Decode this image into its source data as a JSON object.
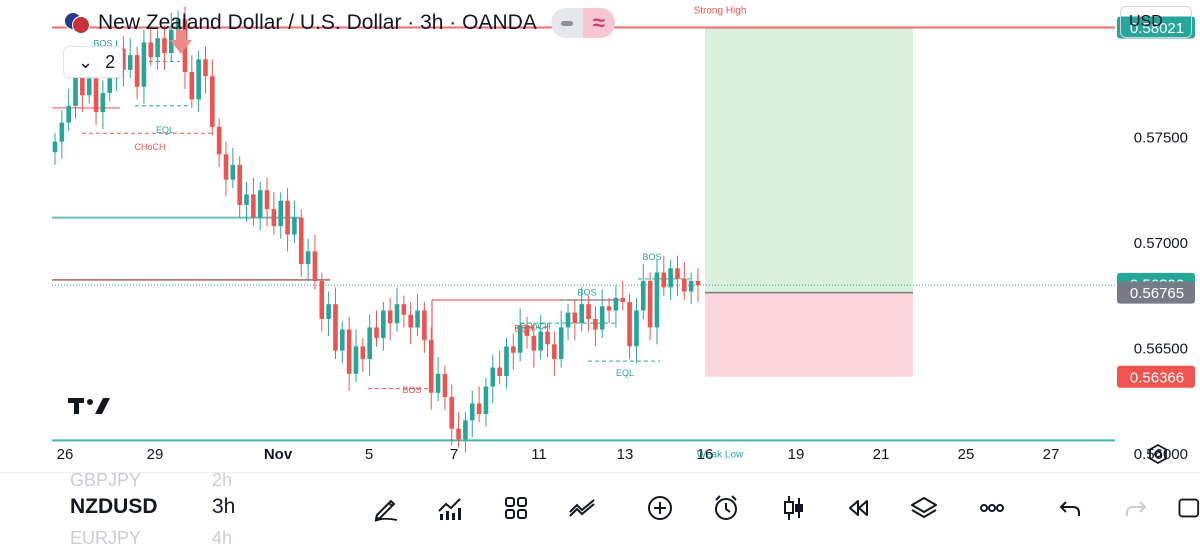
{
  "header": {
    "title": "New Zealand Dollar / U.S. Dollar · 3h · OANDA",
    "currency_button": "USD",
    "indicators_count": "2"
  },
  "colors": {
    "up": "#26a69a",
    "down": "#ef5350",
    "strong_high": "#ef5350",
    "weak_low": "#26a69a",
    "target_zone": "#d9f0dc",
    "stop_zone": "#fbd7dc"
  },
  "chart_data": {
    "type": "candlestick",
    "symbol": "NZDUSD",
    "timeframe": "3h",
    "y_axis": {
      "range": [
        0.55915,
        0.58151
      ],
      "tick_labels": [
        "0.57500",
        "0.57000",
        "0.56500",
        "0.56000"
      ],
      "tick_values": [
        0.575,
        0.57,
        0.565,
        0.56
      ]
    },
    "x_axis": {
      "tick_labels": [
        "26",
        "29",
        "Nov",
        "5",
        "7",
        "11",
        "13",
        "16",
        "19",
        "21",
        "25",
        "27"
      ]
    },
    "price_tags": [
      {
        "label": "0.58021",
        "value": 0.58021,
        "color": "#26a69a"
      },
      {
        "label": "0.56806",
        "value": 0.56806,
        "color": "#26a69a"
      },
      {
        "label": "0.56765",
        "value": 0.56765,
        "color": "#787b86"
      },
      {
        "label": "0.56366",
        "value": 0.56366,
        "color": "#ef5350"
      }
    ],
    "levels": [
      {
        "label": "Strong High",
        "value": 0.58021,
        "color": "#ef5350"
      },
      {
        "label": "Weak Low",
        "value": 0.56065,
        "color": "#26a69a"
      }
    ],
    "structure_labels": [
      {
        "text": "BOS",
        "value": 0.5793,
        "color": "#26a69a"
      },
      {
        "text": "EQL",
        "value": 0.5752,
        "color": "#26a69a"
      },
      {
        "text": "CHoCH",
        "value": 0.5744,
        "color": "#ef5350"
      },
      {
        "text": "BOS",
        "value": 0.5629,
        "color": "#ef5350"
      },
      {
        "text": "EQH",
        "value": 0.5658,
        "color": "#ef5350"
      },
      {
        "text": "CHoCH",
        "value": 0.5659,
        "color": "#26a69a"
      },
      {
        "text": "BOS",
        "value": 0.5675,
        "color": "#26a69a"
      },
      {
        "text": "EQL",
        "value": 0.5637,
        "color": "#26a69a"
      },
      {
        "text": "BOS",
        "value": 0.5692,
        "color": "#26a69a"
      }
    ],
    "position_tool": {
      "entry": 0.56765,
      "target": 0.58021,
      "stop": 0.56366
    },
    "closes": [
      0.5748,
      0.5757,
      0.5765,
      0.5783,
      0.577,
      0.5778,
      0.5762,
      0.5771,
      0.5778,
      0.5792,
      0.5782,
      0.5789,
      0.5774,
      0.5795,
      0.5788,
      0.5797,
      0.579,
      0.5801,
      0.5806,
      0.5781,
      0.5768,
      0.5787,
      0.5779,
      0.5755,
      0.5742,
      0.573,
      0.5737,
      0.5718,
      0.5723,
      0.5712,
      0.5725,
      0.5716,
      0.5708,
      0.572,
      0.5704,
      0.5712,
      0.569,
      0.5696,
      0.5682,
      0.5664,
      0.5671,
      0.5649,
      0.5659,
      0.5638,
      0.5651,
      0.5645,
      0.566,
      0.5655,
      0.5668,
      0.5662,
      0.5671,
      0.5666,
      0.566,
      0.5668,
      0.5654,
      0.5629,
      0.5638,
      0.5627,
      0.5612,
      0.5607,
      0.5616,
      0.5624,
      0.5619,
      0.5632,
      0.5641,
      0.5637,
      0.5651,
      0.5648,
      0.5661,
      0.5656,
      0.5649,
      0.5658,
      0.5652,
      0.5645,
      0.566,
      0.5667,
      0.5662,
      0.5671,
      0.5664,
      0.5659,
      0.567,
      0.5668,
      0.5674,
      0.5672,
      0.5651,
      0.5668,
      0.5682,
      0.566,
      0.5686,
      0.5679,
      0.5688,
      0.5683,
      0.5677,
      0.5682,
      0.568
    ]
  },
  "bottom": {
    "symbol": "NZDUSD",
    "timeframe": "3h",
    "prev_symbol": "GBPJPY",
    "prev_timeframe": "2h",
    "next_symbol": "EURJPY",
    "next_timeframe": "4h"
  }
}
